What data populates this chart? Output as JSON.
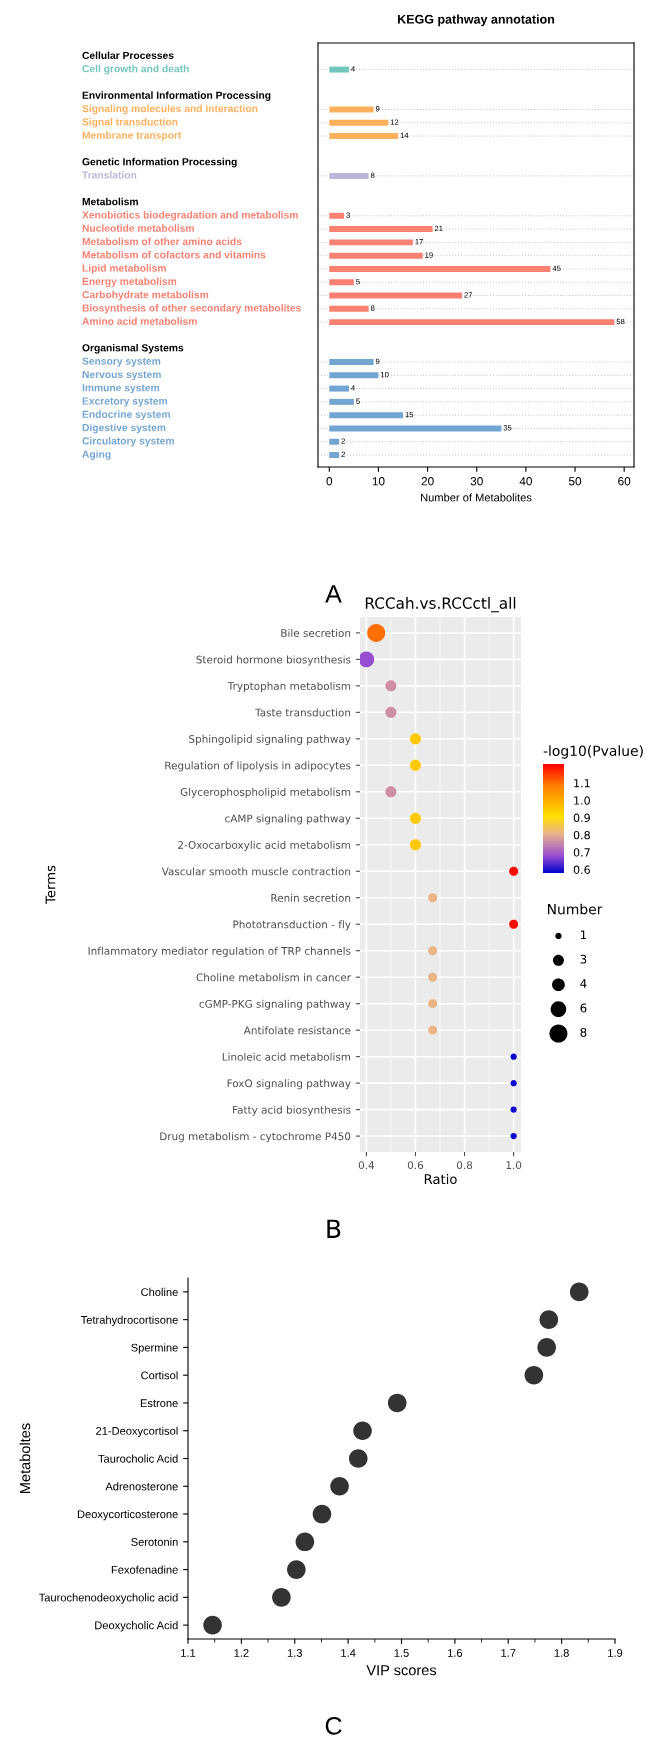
{
  "chart_data": [
    {
      "type": "bar",
      "orientation": "horizontal",
      "title": "KEGG pathway annotation",
      "xlabel": "Number of Metabolites",
      "categories": [
        "Cellular Processes",
        "Cell growth and death",
        null,
        "Environmental Information Processing",
        "Signaling molecules and interaction",
        "Signal transduction",
        "Membrane transport",
        null,
        "Genetic Information Processing",
        "Translation",
        null,
        "Metabolism",
        "Xenobiotics biodegradation and metabolism",
        "Nucleotide metabolism",
        "Metabolism of other amino acids",
        "Metabolism of cofactors and vitamins",
        "Lipid metabolism",
        "Energy metabolism",
        "Carbohydrate metabolism",
        "Biosynthesis of other secondary metabolites",
        "Amino acid metabolism",
        null,
        "Organismal Systems",
        "Sensory system",
        "Nervous system",
        "Immune system",
        "Excretory system",
        "Endocrine system",
        "Digestive system",
        "Circulatory system",
        "Aging"
      ],
      "values": [
        null,
        4,
        null,
        null,
        9,
        12,
        14,
        null,
        null,
        8,
        null,
        null,
        3,
        21,
        17,
        19,
        45,
        5,
        27,
        8,
        58,
        null,
        null,
        9,
        10,
        4,
        5,
        15,
        35,
        2,
        2
      ],
      "colors": [
        null,
        "#72c6bb",
        null,
        null,
        "#ffb05c",
        "#ffb05c",
        "#ffb05c",
        null,
        null,
        "#bcb5d9",
        null,
        null,
        "#fa8072",
        "#fa8072",
        "#fa8072",
        "#fa8072",
        "#fa8072",
        "#fa8072",
        "#fa8072",
        "#fa8072",
        "#fa8072",
        null,
        null,
        "#73a5d3",
        "#73a5d3",
        "#73a5d3",
        "#73a5d3",
        "#73a5d3",
        "#73a5d3",
        "#73a5d3",
        "#73a5d3"
      ],
      "xlim": [
        -2.3,
        62
      ],
      "xticks": [
        0,
        10,
        20,
        30,
        40,
        50,
        60
      ],
      "data_labels": true,
      "grid": "y",
      "annotations": [
        "A"
      ]
    },
    {
      "type": "bubble",
      "orientation": "horizontal",
      "title": "RCCah.vs.RCCctl_all",
      "xlabel": "Ratio",
      "ylabel": "Terms",
      "clabel": "-log10(Pvalue)",
      "legend_title": "Number",
      "categories": [
        "Bile secretion",
        "Steroid hormone biosynthesis",
        "Tryptophan metabolism",
        "Taste transduction",
        "Sphingolipid signaling pathway",
        "Regulation of lipolysis in adipocytes",
        "Glycerophospholipid metabolism",
        "cAMP signaling pathway",
        "2-Oxocarboxylic acid metabolism",
        "Vascular smooth muscle contraction",
        "Renin secretion",
        "Phototransduction - fly",
        "Inflammatory mediator regulation of TRP channels",
        "Choline metabolism in cancer",
        "cGMP-PKG signaling pathway",
        "Antifolate resistance",
        "Linoleic acid metabolism",
        "FoxO signaling pathway",
        "Fatty acid biosynthesis",
        "Drug metabolism - cytochrome P450"
      ],
      "values": [
        0.44,
        0.4,
        0.5,
        0.5,
        0.6,
        0.6,
        0.5,
        0.6,
        0.6,
        1.0,
        0.67,
        1.0,
        0.67,
        0.67,
        0.67,
        0.67,
        1.0,
        1.0,
        1.0,
        1.0
      ],
      "sizes": [
        8,
        6,
        3,
        3,
        3,
        3,
        3,
        3,
        3,
        2,
        2,
        2,
        2,
        2,
        2,
        2,
        1,
        1,
        1,
        1
      ],
      "cvalues": [
        1.1,
        0.68,
        0.76,
        0.76,
        0.95,
        0.95,
        0.76,
        0.95,
        0.95,
        1.2,
        0.81,
        1.2,
        0.81,
        0.81,
        0.81,
        0.81,
        0.59,
        0.59,
        0.59,
        0.59
      ],
      "clim": [
        0.58,
        1.21
      ],
      "cticks": [
        0.6,
        0.7,
        0.8,
        0.9,
        {
          "value": 1,
          "label": "1.0"
        },
        1.1
      ],
      "size_legend": [
        1,
        3,
        4,
        6,
        8
      ],
      "xlim": [
        0.374,
        1.03
      ],
      "xticks": [
        0.4,
        0.6,
        0.8,
        {
          "value": 1,
          "label": "1.0"
        }
      ],
      "grid": true,
      "annotations": [
        "B"
      ]
    },
    {
      "type": "scatter",
      "orientation": "horizontal",
      "xlabel": "VIP scores",
      "ylabel": "Metaboltes",
      "color": "#333333",
      "marker": "circle",
      "categories": [
        "Choline",
        "Tetrahydrocortisone",
        "Spermine",
        "Cortisol",
        "Estrone",
        "21-Deoxycortisol",
        "Taurocholic Acid",
        "Adrenosterone",
        "Deoxycorticosterone",
        "Serotonin",
        "Fexofenadine",
        "Taurochenodeoxycholic acid",
        "Deoxycholic Acid"
      ],
      "values": [
        1.833,
        1.776,
        1.772,
        1.748,
        1.492,
        1.427,
        1.419,
        1.384,
        1.351,
        1.319,
        1.303,
        1.275,
        1.146
      ],
      "xlim": [
        1.1,
        1.9
      ],
      "xticks": [
        1.1,
        1.2,
        1.3,
        1.4,
        1.5,
        1.6,
        1.7,
        1.8,
        1.9
      ],
      "annotations": [
        "C"
      ]
    }
  ]
}
